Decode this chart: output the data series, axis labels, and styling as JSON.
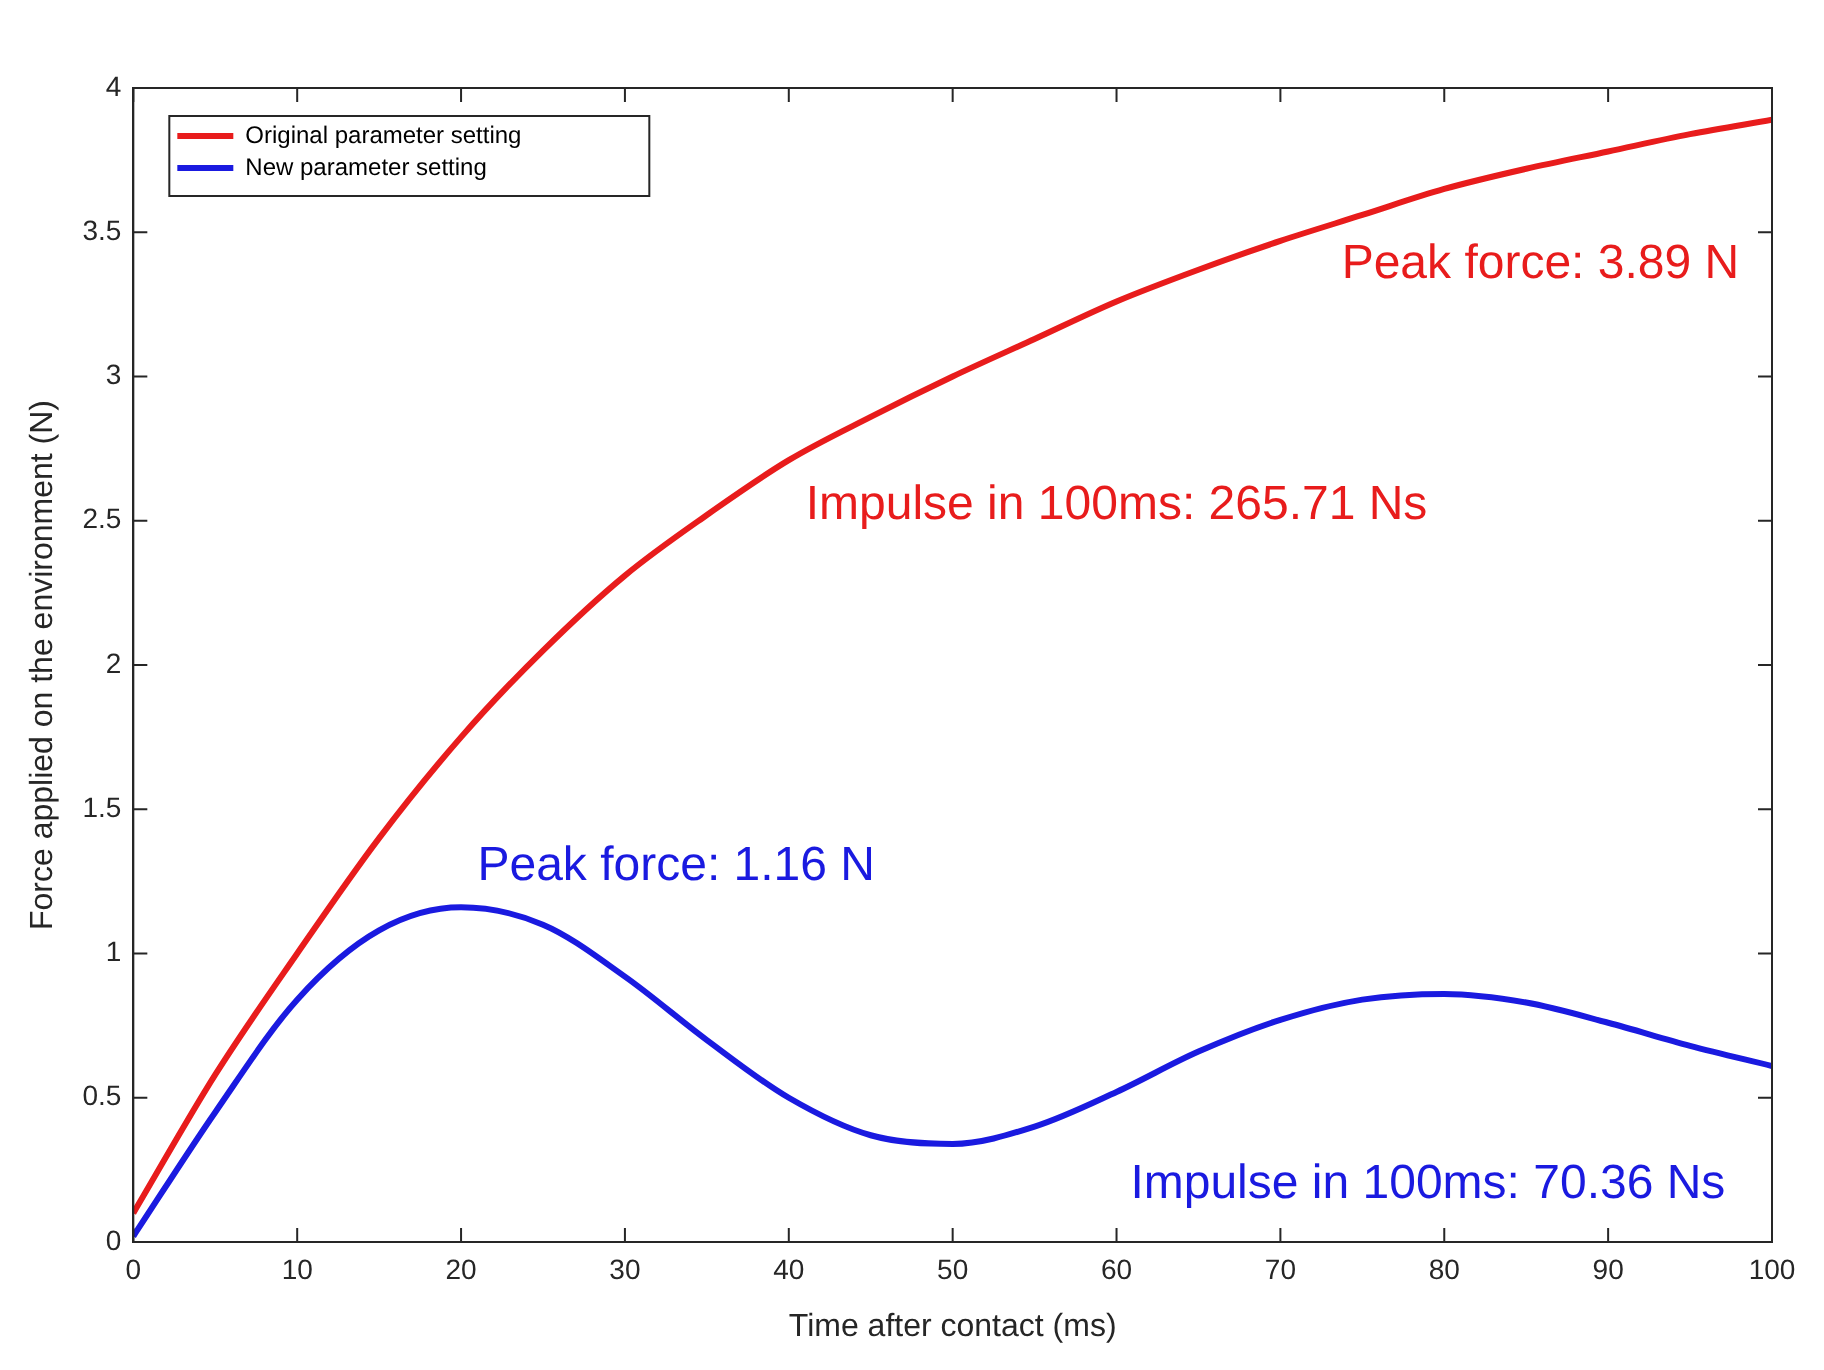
{
  "chart_data": {
    "type": "line",
    "xlabel": "Time after contact (ms)",
    "ylabel": "Force applied on the environment (N)",
    "xlim": [
      0,
      100
    ],
    "xticks": [
      0,
      10,
      20,
      30,
      40,
      50,
      60,
      70,
      80,
      90,
      100
    ],
    "ylim": [
      0,
      4
    ],
    "yticks": [
      0,
      0.5,
      1,
      1.5,
      2,
      2.5,
      3,
      3.5,
      4
    ],
    "x": [
      0,
      5,
      10,
      15,
      20,
      25,
      30,
      35,
      40,
      45,
      50,
      55,
      60,
      65,
      70,
      75,
      80,
      85,
      90,
      95,
      100
    ],
    "series": [
      {
        "name": "Original parameter setting",
        "color": "#e81c1c",
        "values": [
          0.1,
          0.58,
          1.0,
          1.4,
          1.75,
          2.05,
          2.31,
          2.52,
          2.71,
          2.86,
          3.0,
          3.13,
          3.26,
          3.37,
          3.47,
          3.56,
          3.65,
          3.72,
          3.78,
          3.84,
          3.89
        ]
      },
      {
        "name": "New parameter setting",
        "color": "#1a1ae0",
        "values": [
          0.02,
          0.45,
          0.84,
          1.08,
          1.16,
          1.1,
          0.92,
          0.7,
          0.5,
          0.37,
          0.34,
          0.4,
          0.52,
          0.66,
          0.77,
          0.84,
          0.86,
          0.83,
          0.76,
          0.68,
          0.61
        ]
      }
    ],
    "annotations": [
      "Peak force: 3.89 N",
      "Impulse in 100ms: 265.71 Ns",
      "Peak force: 1.16 N",
      "Impulse in 100ms: 70.36 Ns"
    ],
    "legend": "top left",
    "grid": false,
    "marker": "none",
    "line_style": "solid"
  }
}
